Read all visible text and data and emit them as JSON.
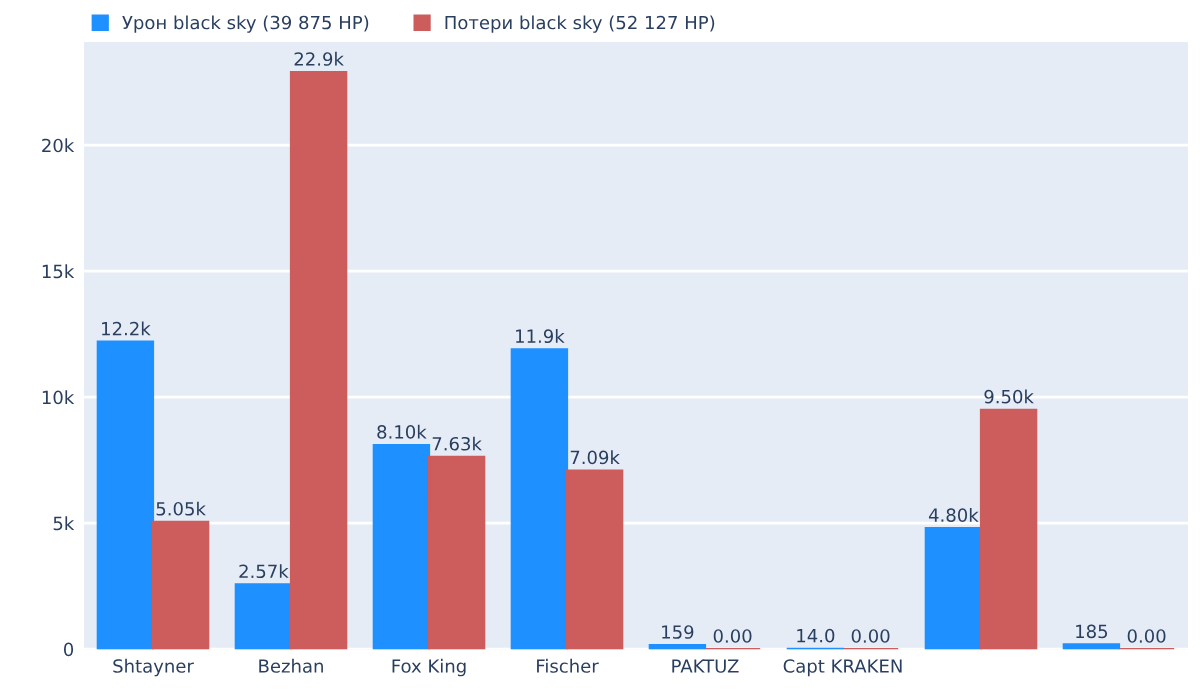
{
  "chart_data": {
    "type": "bar",
    "categories": [
      "Shtayner",
      "Bezhan",
      "Fox King",
      "Fischer",
      "PAKTUZ",
      "Capt KRAKEN",
      null,
      null
    ],
    "series": [
      {
        "name": "Урон black sky (39 875 HP)",
        "color": "#1e90ff",
        "values": [
          12200,
          2570,
          8100,
          11900,
          159,
          14.0,
          4800,
          185
        ],
        "value_labels": [
          "12.2k",
          "2.57k",
          "8.10k",
          "11.9k",
          "159",
          "14.0",
          "4.80k",
          "185"
        ]
      },
      {
        "name": "Потери black sky (52 127 HP)",
        "color": "#cd5c5c",
        "values": [
          5050,
          22900,
          7630,
          7090,
          0,
          0,
          9500,
          0
        ],
        "value_labels": [
          "5.05k",
          "22.9k",
          "7.63k",
          "7.09k",
          "0.00",
          "0.00",
          "9.50k",
          "0.00"
        ]
      }
    ],
    "ylim": [
      0,
      24100
    ],
    "yticks": [
      0,
      {
        "value": 5000,
        "label": "5k"
      },
      {
        "value": 10000,
        "label": "10k"
      },
      {
        "value": 15000,
        "label": "15k"
      },
      {
        "value": 20000,
        "label": "20k"
      }
    ],
    "grid": "y",
    "legend": "top left"
  }
}
